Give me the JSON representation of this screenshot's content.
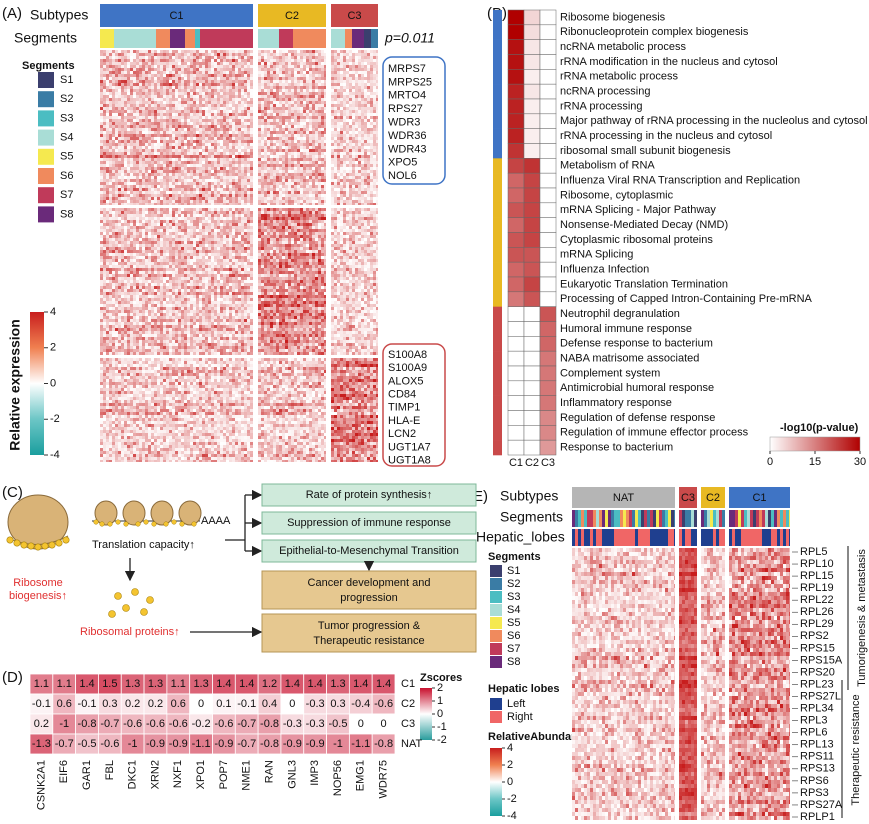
{
  "panel_labels": [
    "(A)",
    "(B)",
    "(C)",
    "(D)",
    "(E)"
  ],
  "panel_a": {
    "subtypes_label": "Subtypes",
    "segments_label": "Segments",
    "subtypes": [
      "C1",
      "C2",
      "C3"
    ],
    "subtype_colors": [
      "#3f74c5",
      "#e8b923",
      "#c94a4a"
    ],
    "p_value": "p=0.011",
    "legend_title": "Segments",
    "segments": [
      "S1",
      "S2",
      "S3",
      "S4",
      "S5",
      "S6",
      "S7",
      "S8"
    ],
    "segment_colors": [
      "#3b3f6e",
      "#3a7ca5",
      "#4bbdc2",
      "#a9ddd6",
      "#f5e94f",
      "#f08a5d",
      "#c03a5a",
      "#6a2a7a"
    ],
    "genes_top": [
      "MRPS7",
      "MRPS25",
      "MRTO4",
      "RPS27",
      "WDR3",
      "WDR36",
      "WDR43",
      "XPO5",
      "NOL6"
    ],
    "genes_bottom": [
      "S100A8",
      "S100A9",
      "ALOX5",
      "CD84",
      "TIMP1",
      "HLA-E",
      "LCN2",
      "UGT1A7",
      "UGT1A8"
    ],
    "colorbar_title": "Relative expression",
    "colorbar_ticks": [
      4,
      2,
      0,
      -2,
      -4
    ]
  },
  "panel_b": {
    "terms": [
      "Ribosome biogenesis",
      "Ribonucleoprotein complex biogenesis",
      "ncRNA metabolic process",
      "rRNA modification in the nucleus and cytosol",
      "rRNA metabolic process",
      "ncRNA processing",
      "rRNA processing",
      "Major pathway of rRNA processing in the nucleolus and cytosol",
      "rRNA processing in the nucleus and cytosol",
      "ribosomal small subunit biogenesis",
      "Metabolism of RNA",
      "Influenza Viral RNA Transcription and Replication",
      "Ribosome, cytoplasmic",
      "mRNA Splicing - Major Pathway",
      "Nonsense-Mediated Decay (NMD)",
      "Cytoplasmic ribosomal proteins",
      "mRNA Splicing",
      "Influenza Infection",
      "Eukaryotic Translation Termination",
      "Processing of Capped Intron-Containing Pre-mRNA",
      "Neutrophil degranulation",
      "Humoral immune response",
      "Defense response to bacterium",
      "NABA matrisome associated",
      "Complement system",
      "Antimicrobial humoral response",
      "Inflammatory response",
      "Regulation of defense response",
      "Regulation of immune effector process",
      "Response to bacterium"
    ],
    "columns": [
      "C1",
      "C2",
      "C3"
    ],
    "values": [
      [
        30,
        5,
        0
      ],
      [
        30,
        4,
        0
      ],
      [
        28,
        3,
        0
      ],
      [
        28,
        3,
        0
      ],
      [
        28,
        2,
        0
      ],
      [
        26,
        3,
        0
      ],
      [
        26,
        2,
        0
      ],
      [
        26,
        2,
        0
      ],
      [
        26,
        2,
        0
      ],
      [
        24,
        2,
        0
      ],
      [
        22,
        24,
        0
      ],
      [
        18,
        22,
        0
      ],
      [
        18,
        22,
        0
      ],
      [
        20,
        22,
        0
      ],
      [
        18,
        22,
        0
      ],
      [
        20,
        22,
        0
      ],
      [
        20,
        20,
        0
      ],
      [
        18,
        20,
        0
      ],
      [
        18,
        22,
        0
      ],
      [
        16,
        20,
        0
      ],
      [
        0,
        0,
        20
      ],
      [
        0,
        0,
        18
      ],
      [
        0,
        0,
        18
      ],
      [
        0,
        0,
        16
      ],
      [
        0,
        0,
        16
      ],
      [
        0,
        0,
        16
      ],
      [
        0,
        0,
        16
      ],
      [
        0,
        0,
        14
      ],
      [
        0,
        0,
        14
      ],
      [
        0,
        0,
        12
      ]
    ],
    "legend_title": "-log10(p-value)",
    "legend_ticks": [
      0,
      15,
      30
    ]
  },
  "panel_c": {
    "ribosome_biogenesis": [
      "Ribosome",
      "biogenesis↑"
    ],
    "translation": "Translation capacity↑",
    "poly_a": "AAAA",
    "ribosomal_proteins": "Ribosomal proteins↑",
    "effects": [
      "Rate of protein synthesis↑",
      "Suppression of immune response",
      "Epithelial-to-Mesenchymal Transition"
    ],
    "cancer_box": [
      "Cancer development and",
      "progression"
    ],
    "tumor_box": [
      "Tumor progression &",
      "Therapeutic resistance"
    ]
  },
  "panel_d": {
    "columns": [
      "CSNK2A1",
      "EIF6",
      "GAR1",
      "FBL",
      "DKC1",
      "XRN2",
      "NXF1",
      "XPO1",
      "POP7",
      "NME1",
      "RAN",
      "GNL3",
      "IMP3",
      "NOP56",
      "EMG1",
      "WDR75"
    ],
    "rows": [
      "C1",
      "C2",
      "C3",
      "NAT"
    ],
    "values": [
      [
        1.1,
        1.1,
        1.4,
        1.5,
        1.3,
        1.3,
        1.1,
        1.3,
        1.4,
        1.4,
        1.2,
        1.4,
        1.4,
        1.3,
        1.4,
        1.4
      ],
      [
        -0.1,
        0.6,
        -0.1,
        0.3,
        0.2,
        0.2,
        0.6,
        0,
        0.1,
        -0.1,
        0.4,
        0,
        -0.3,
        0.3,
        -0.4,
        -0.6
      ],
      [
        0.2,
        -1,
        -0.8,
        -0.7,
        -0.6,
        -0.6,
        -0.6,
        -0.2,
        -0.6,
        -0.7,
        -0.8,
        -0.3,
        -0.3,
        -0.5,
        0,
        0
      ],
      [
        -1.3,
        -0.7,
        -0.5,
        -0.6,
        -1,
        -0.9,
        -0.9,
        -1.1,
        -0.9,
        -0.7,
        -0.8,
        -0.9,
        -0.9,
        -1,
        -1.1,
        -0.8
      ]
    ],
    "legend_title": "Zscores",
    "legend_ticks": [
      2,
      1,
      0,
      -1,
      -2
    ]
  },
  "panel_e": {
    "subtypes_label": "Subtypes",
    "segments_label": "Segments",
    "lobes_label": "Hepatic_lobes",
    "subtypes": [
      "NAT",
      "C3",
      "C2",
      "C1"
    ],
    "subtype_colors": [
      "#b5b5b5",
      "#c94a4a",
      "#e8b923",
      "#3f74c5"
    ],
    "legend_title": "Segments",
    "segments": [
      "S1",
      "S2",
      "S3",
      "S4",
      "S5",
      "S6",
      "S7",
      "S8"
    ],
    "lobes_title": "Hepatic lobes",
    "lobes": [
      "Left",
      "Right"
    ],
    "lobe_colors": [
      "#1f3f8f",
      "#f06666"
    ],
    "genes": [
      "RPL5",
      "RPL10",
      "RPL15",
      "RPL19",
      "RPL22",
      "RPL26",
      "RPL29",
      "RPS2",
      "RPS15",
      "RPS15A",
      "RPS20",
      "RPL23",
      "RPS27L",
      "RPL34",
      "RPL3",
      "RPL6",
      "RPL13",
      "RPS11",
      "RPS13",
      "RPS6",
      "RPS3",
      "RPS27A",
      "RPLP1"
    ],
    "highlight_genes": [
      "RPL23",
      "RPS27L",
      "RPL34"
    ],
    "highlight_color": "#e03030",
    "group_top": "Tumorigenesis & metastasis",
    "group_bottom": "Therapeutic resistance",
    "colorbar_title": "RelativeAbundance",
    "colorbar_ticks": [
      4,
      2,
      0,
      -2,
      -4
    ]
  }
}
